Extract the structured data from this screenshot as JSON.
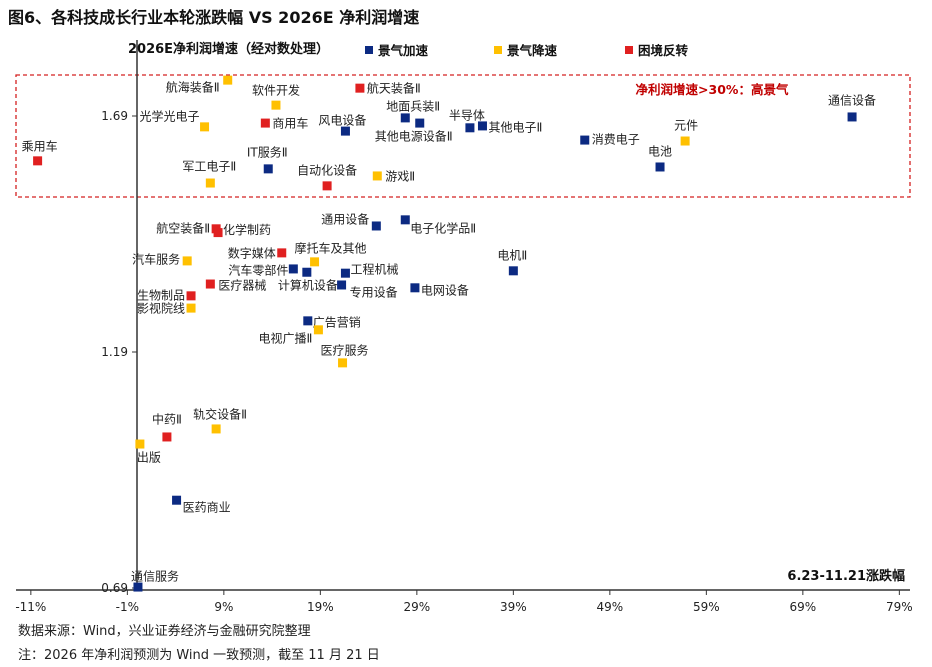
{
  "title": "图6、各科技成长行业本轮涨跌幅  VS 2026E 净利润增速",
  "footer": {
    "source": "数据来源：Wind，兴业证券经济与金融研究院整理",
    "note": "注：2026 年净利润预测为 Wind 一致预测，截至 11 月 21 日"
  },
  "chart_data": {
    "type": "scatter",
    "title": "图6、各科技成长行业本轮涨跌幅  VS 2026E 净利润增速",
    "xlabel": "6.23-11.21涨跌幅",
    "ylabel": "2026E净利润增速（经对数处理）",
    "x_unit": "%",
    "xlim": [
      -11,
      80
    ],
    "ylim": [
      0.69,
      1.85
    ],
    "x_ticks": [
      "-11%",
      "-1%",
      "9%",
      "19%",
      "29%",
      "39%",
      "49%",
      "59%",
      "69%",
      "79%"
    ],
    "x_tick_values": [
      -11,
      -1,
      9,
      19,
      29,
      39,
      49,
      59,
      69,
      79
    ],
    "y_ticks": [
      "0.69",
      "1.19",
      "1.69"
    ],
    "y_tick_values": [
      0.69,
      1.19,
      1.69
    ],
    "grid": false,
    "legend_placement": "top",
    "annotation": "净利润增速>30%：高景气",
    "annotation_color": "#c00000",
    "categories": [
      {
        "key": "accel",
        "name": "景气加速",
        "color": "#0c2a82"
      },
      {
        "key": "decel",
        "name": "景气降速",
        "color": "#ffc000"
      },
      {
        "key": "reversal",
        "name": "困境反转",
        "color": "#e02020"
      }
    ],
    "points": [
      {
        "name": "乘用车",
        "x": -10.3,
        "y": 1.595,
        "cat": "reversal"
      },
      {
        "name": "航海装备Ⅱ",
        "x": 9.4,
        "y": 1.766,
        "cat": "decel"
      },
      {
        "name": "软件开发",
        "x": 14.4,
        "y": 1.713,
        "cat": "decel"
      },
      {
        "name": "航天装备Ⅱ",
        "x": 23.1,
        "y": 1.749,
        "cat": "reversal"
      },
      {
        "name": "光学光电子",
        "x": 7.0,
        "y": 1.667,
        "cat": "decel"
      },
      {
        "name": "商用车",
        "x": 13.3,
        "y": 1.675,
        "cat": "reversal"
      },
      {
        "name": "风电设备",
        "x": 21.6,
        "y": 1.658,
        "cat": "accel"
      },
      {
        "name": "地面兵装Ⅱ",
        "x": 27.8,
        "y": 1.686,
        "cat": "accel"
      },
      {
        "name": "其他电源设备Ⅱ",
        "x": 29.3,
        "y": 1.675,
        "cat": "accel"
      },
      {
        "name": "半导体",
        "x": 34.5,
        "y": 1.665,
        "cat": "accel"
      },
      {
        "name": "其他电子Ⅱ",
        "x": 35.8,
        "y": 1.669,
        "cat": "accel"
      },
      {
        "name": "消费电子",
        "x": 46.4,
        "y": 1.639,
        "cat": "accel"
      },
      {
        "name": "元件",
        "x": 56.8,
        "y": 1.637,
        "cat": "decel"
      },
      {
        "name": "电池",
        "x": 54.2,
        "y": 1.582,
        "cat": "accel"
      },
      {
        "name": "通信设备",
        "x": 74.1,
        "y": 1.688,
        "cat": "accel"
      },
      {
        "name": "IT服务Ⅱ",
        "x": 13.6,
        "y": 1.578,
        "cat": "accel"
      },
      {
        "name": "军工电子Ⅱ",
        "x": 7.6,
        "y": 1.548,
        "cat": "decel"
      },
      {
        "name": "自动化设备",
        "x": 19.7,
        "y": 1.542,
        "cat": "reversal"
      },
      {
        "name": "游戏Ⅱ",
        "x": 24.9,
        "y": 1.563,
        "cat": "decel"
      },
      {
        "name": "航空装备Ⅱ",
        "x": 8.2,
        "y": 1.451,
        "cat": "reversal"
      },
      {
        "name": "化学制药",
        "x": 8.4,
        "y": 1.443,
        "cat": "reversal"
      },
      {
        "name": "通用设备",
        "x": 24.8,
        "y": 1.457,
        "cat": "accel"
      },
      {
        "name": "电子化学品Ⅱ",
        "x": 27.8,
        "y": 1.47,
        "cat": "accel"
      },
      {
        "name": "电机Ⅱ",
        "x": 39.0,
        "y": 1.362,
        "cat": "accel"
      },
      {
        "name": "汽车服务",
        "x": 5.2,
        "y": 1.383,
        "cat": "decel"
      },
      {
        "name": "数字媒体",
        "x": 15.0,
        "y": 1.4,
        "cat": "reversal"
      },
      {
        "name": "摩托车及其他",
        "x": 18.4,
        "y": 1.381,
        "cat": "decel"
      },
      {
        "name": "汽车零部件",
        "x": 16.2,
        "y": 1.366,
        "cat": "accel"
      },
      {
        "name": "计算机设备",
        "x": 17.6,
        "y": 1.359,
        "cat": "accel"
      },
      {
        "name": "工程机械",
        "x": 21.6,
        "y": 1.357,
        "cat": "accel"
      },
      {
        "name": "专用设备",
        "x": 21.2,
        "y": 1.332,
        "cat": "accel"
      },
      {
        "name": "电网设备",
        "x": 28.8,
        "y": 1.326,
        "cat": "accel"
      },
      {
        "name": "医疗器械",
        "x": 7.6,
        "y": 1.334,
        "cat": "reversal"
      },
      {
        "name": "生物制品",
        "x": 5.6,
        "y": 1.309,
        "cat": "reversal"
      },
      {
        "name": "影视院线",
        "x": 5.6,
        "y": 1.283,
        "cat": "decel"
      },
      {
        "name": "广告营销",
        "x": 17.7,
        "y": 1.256,
        "cat": "accel"
      },
      {
        "name": "电视广播Ⅱ",
        "x": 18.8,
        "y": 1.237,
        "cat": "decel"
      },
      {
        "name": "医疗服务",
        "x": 21.3,
        "y": 1.167,
        "cat": "decel"
      },
      {
        "name": "中药Ⅱ",
        "x": 3.1,
        "y": 1.01,
        "cat": "reversal"
      },
      {
        "name": "轨交设备Ⅱ",
        "x": 8.2,
        "y": 1.027,
        "cat": "decel"
      },
      {
        "name": "出版",
        "x": 0.3,
        "y": 0.995,
        "cat": "decel"
      },
      {
        "name": "医药商业",
        "x": 4.1,
        "y": 0.876,
        "cat": "accel"
      },
      {
        "name": "通信服务",
        "x": 0.1,
        "y": 0.692,
        "cat": "accel"
      }
    ]
  }
}
